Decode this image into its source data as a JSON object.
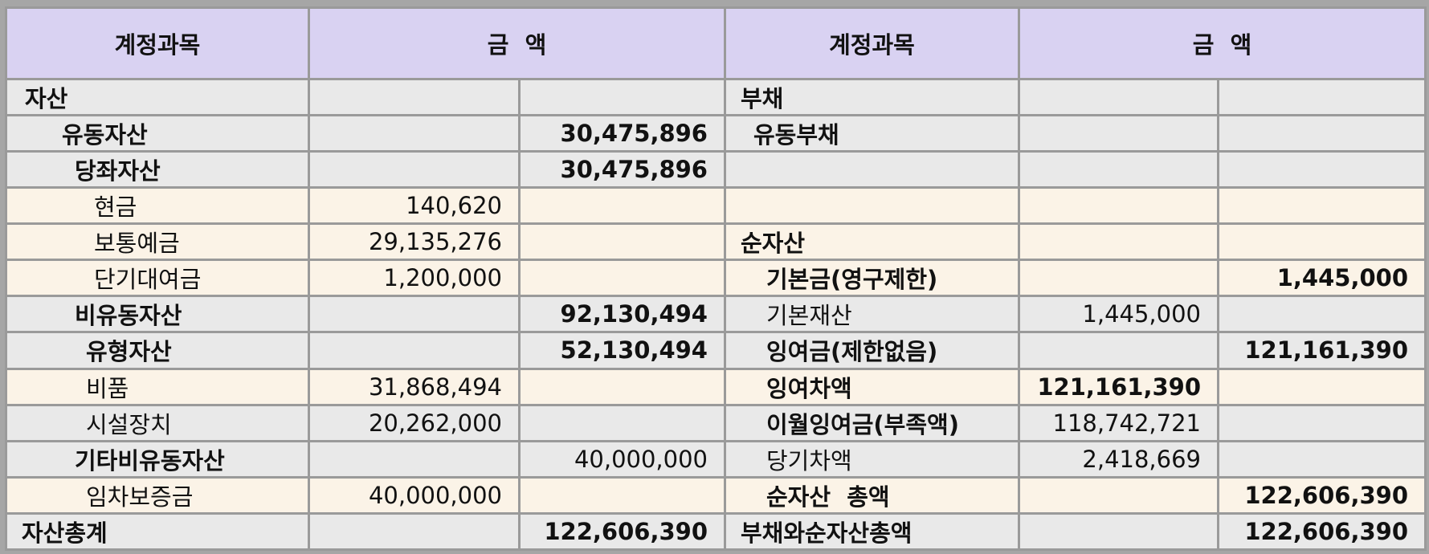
{
  "header": {
    "col1": "계정과목",
    "col2": "금  액",
    "col3": "계정과목",
    "col4": "금  액"
  },
  "rows": [
    {
      "left_label": "자산",
      "left_a": "",
      "left_b": "",
      "right_label": "부채",
      "right_a": "",
      "right_b": ""
    },
    {
      "left_label": "유동자산",
      "left_a": "",
      "left_b": "30,475,896",
      "right_label": "유동부채",
      "right_a": "",
      "right_b": ""
    },
    {
      "left_label": "당좌자산",
      "left_a": "",
      "left_b": "30,475,896",
      "right_label": "",
      "right_a": "",
      "right_b": ""
    },
    {
      "left_label": "현금",
      "left_a": "140,620",
      "left_b": "",
      "right_label": "",
      "right_a": "",
      "right_b": ""
    },
    {
      "left_label": "보통예금",
      "left_a": "29,135,276",
      "left_b": "",
      "right_label": "순자산",
      "right_a": "",
      "right_b": ""
    },
    {
      "left_label": "단기대여금",
      "left_a": "1,200,000",
      "left_b": "",
      "right_label": "기본금(영구제한)",
      "right_a": "",
      "right_b": "1,445,000"
    },
    {
      "left_label": "비유동자산",
      "left_a": "",
      "left_b": "92,130,494",
      "right_label": "기본재산",
      "right_a": "1,445,000",
      "right_b": ""
    },
    {
      "left_label": "유형자산",
      "left_a": "",
      "left_b": "52,130,494",
      "right_label": "잉여금(제한없음)",
      "right_a": "",
      "right_b": "121,161,390"
    },
    {
      "left_label": "비품",
      "left_a": "31,868,494",
      "left_b": "",
      "right_label": "잉여차액",
      "right_a": "121,161,390",
      "right_b": ""
    },
    {
      "left_label": "시설장치",
      "left_a": "20,262,000",
      "left_b": "",
      "right_label": "이월잉여금(부족액)",
      "right_a": "118,742,721",
      "right_b": ""
    },
    {
      "left_label": "기타비유동자산",
      "left_a": "",
      "left_b": "40,000,000",
      "right_label": "당기차액",
      "right_a": "2,418,669",
      "right_b": ""
    },
    {
      "left_label": "임차보증금",
      "left_a": "40,000,000",
      "left_b": "",
      "right_label": "순자산  총액",
      "right_a": "",
      "right_b": "122,606,390"
    },
    {
      "left_label": "자산총계",
      "left_a": "",
      "left_b": "122,606,390",
      "right_label": "부채와순자산총액",
      "right_a": "",
      "right_b": "122,606,390"
    }
  ]
}
